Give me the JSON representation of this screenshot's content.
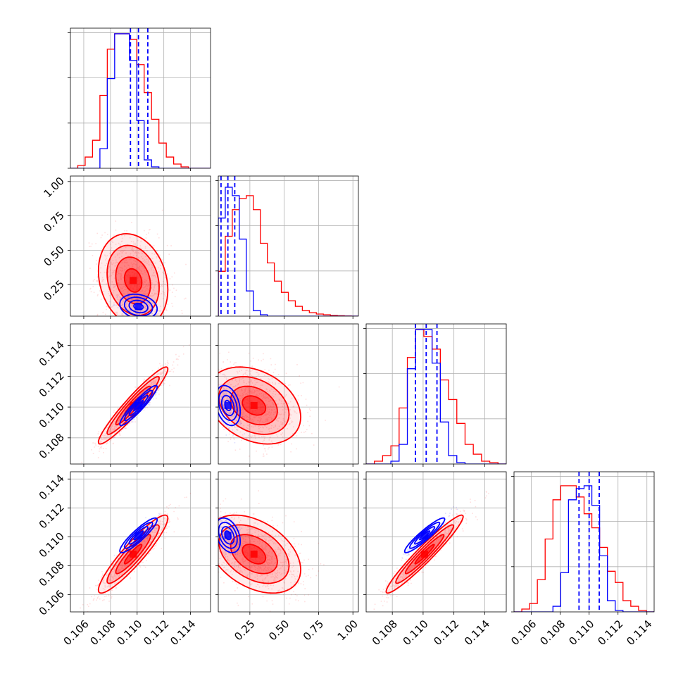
{
  "chart_data": {
    "type": "corner",
    "title": "",
    "params": [
      {
        "range": [
          0.105,
          0.1155
        ],
        "ticks": [
          0.106,
          0.108,
          0.11,
          0.112,
          0.114
        ],
        "tick_labels": [
          "0.106",
          "0.108",
          "0.110",
          "0.112",
          "0.114"
        ]
      },
      {
        "range": [
          0.02,
          1.04
        ],
        "ticks": [
          0.25,
          0.5,
          0.75,
          1.0
        ],
        "tick_labels": [
          "0.25",
          "0.50",
          "0.75",
          "1.00"
        ]
      },
      {
        "range": [
          0.1063,
          0.1154
        ],
        "ticks": [
          0.108,
          0.11,
          0.112,
          0.114
        ],
        "tick_labels": [
          "0.108",
          "0.110",
          "0.112",
          "0.114"
        ]
      },
      {
        "range": [
          0.1048,
          0.1145
        ],
        "ticks": [
          0.106,
          0.108,
          0.11,
          0.112,
          0.114
        ],
        "tick_labels": [
          "0.106",
          "0.108",
          "0.110",
          "0.112",
          "0.114"
        ]
      }
    ],
    "diag_params": [
      {
        "range": [
          0.105,
          0.1155
        ],
        "ticks": [
          0.106,
          0.108,
          0.11,
          0.112,
          0.114
        ]
      },
      {
        "range": [
          0.02,
          1.04
        ],
        "ticks": [
          0.25,
          0.5,
          0.75,
          1.0
        ]
      },
      {
        "range": [
          0.1063,
          0.1154
        ],
        "ticks": [
          0.108,
          0.11,
          0.112,
          0.114
        ]
      },
      {
        "range": [
          0.1048,
          0.1145
        ],
        "ticks": [
          0.106,
          0.108,
          0.11,
          0.112,
          0.114
        ]
      }
    ],
    "series": [
      {
        "color": "#ff0000",
        "mean": [
          0.1097,
          0.28,
          0.1101,
          0.1088
        ],
        "sigma": [
          0.0013,
          0.17,
          0.00125,
          0.00135
        ],
        "corr": [
          [
            1,
            -0.2,
            0.95,
            0.92
          ],
          [
            -0.2,
            1,
            -0.3,
            -0.4
          ],
          [
            0.95,
            -0.3,
            1,
            0.96
          ],
          [
            0.92,
            -0.4,
            0.96,
            1
          ]
        ],
        "histograms": [
          [
            0,
            0.02,
            0.08,
            0.2,
            0.52,
            0.85,
            0.96,
            0.96,
            0.92,
            0.74,
            0.54,
            0.35,
            0.18,
            0.08,
            0.03,
            0.01,
            0,
            0,
            0
          ],
          [
            0.32,
            0.57,
            0.76,
            0.84,
            0.86,
            0.76,
            0.52,
            0.38,
            0.25,
            0.17,
            0.11,
            0.07,
            0.04,
            0.025,
            0.015,
            0.01,
            0.005,
            0.003,
            0.001,
            0
          ],
          [
            0,
            0.02,
            0.06,
            0.13,
            0.4,
            0.76,
            0.96,
            0.91,
            0.82,
            0.6,
            0.46,
            0.29,
            0.14,
            0.07,
            0.02,
            0.01,
            0
          ],
          [
            0,
            0.02,
            0.06,
            0.23,
            0.52,
            0.8,
            0.9,
            0.9,
            0.82,
            0.7,
            0.6,
            0.46,
            0.29,
            0.21,
            0.08,
            0.04,
            0.01,
            0
          ]
        ]
      },
      {
        "color": "#0000ff",
        "mean": [
          0.1101,
          0.09,
          0.1101,
          0.1101
        ],
        "sigma": [
          0.0007,
          0.045,
          0.00065,
          0.0006
        ],
        "corr": [
          [
            1,
            -0.2,
            0.93,
            0.9
          ],
          [
            -0.2,
            1,
            -0.3,
            -0.35
          ],
          [
            0.93,
            -0.3,
            1,
            0.93
          ],
          [
            0.9,
            -0.35,
            0.93,
            1
          ]
        ],
        "histograms": [
          [
            0,
            0,
            0,
            0,
            0.14,
            0.64,
            0.96,
            0.96,
            0.77,
            0.34,
            0.06,
            0.01,
            0,
            0,
            0,
            0,
            0,
            0,
            0
          ],
          [
            0.7,
            0.92,
            0.86,
            0.55,
            0.18,
            0.04,
            0.01,
            0,
            0,
            0,
            0,
            0,
            0,
            0,
            0,
            0,
            0,
            0,
            0,
            0
          ],
          [
            0,
            0,
            0,
            0.02,
            0.14,
            0.68,
            0.96,
            0.96,
            0.72,
            0.3,
            0.06,
            0.01,
            0,
            0,
            0,
            0,
            0
          ],
          [
            0,
            0,
            0,
            0,
            0,
            0.04,
            0.28,
            0.8,
            0.88,
            0.9,
            0.76,
            0.4,
            0.08,
            0.01,
            0,
            0,
            0,
            0
          ]
        ],
        "quantiles": [
          [
            0.1095,
            0.1101,
            0.1108
          ],
          [
            0.04,
            0.09,
            0.14
          ],
          [
            0.1095,
            0.1102,
            0.1109
          ],
          [
            0.1093,
            0.11,
            0.1107
          ]
        ]
      }
    ]
  }
}
